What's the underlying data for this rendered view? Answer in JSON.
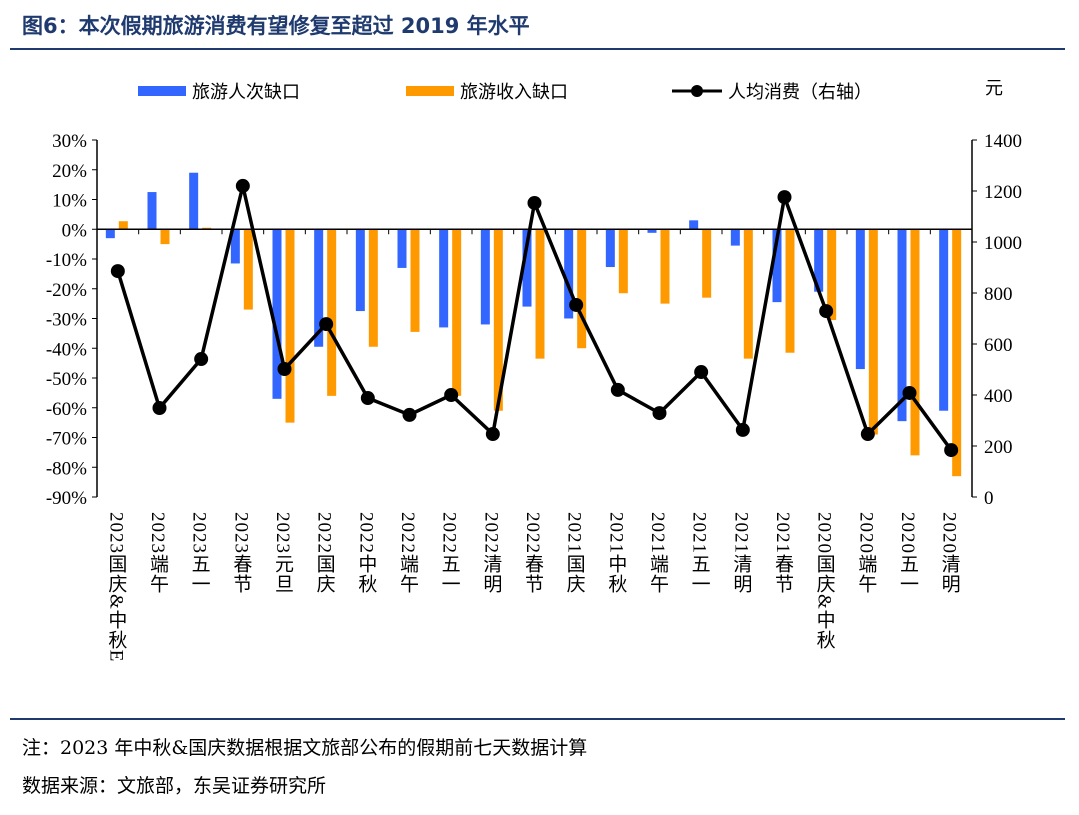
{
  "title": "图6：本次假期旅游消费有望修复至超过 2019 年水平",
  "note": "注：2023 年中秋&国庆数据根据文旅部公布的假期前七天数据计算",
  "source": "数据来源：文旅部，东吴证券研究所",
  "chart_data": {
    "type": "bar+line",
    "title": "本次假期旅游消费有望修复至超过 2019 年水平",
    "categories": [
      "2023国庆&中秋E",
      "2023端午",
      "2023五一",
      "2023春节",
      "2023元旦",
      "2022国庆",
      "2022中秋",
      "2022端午",
      "2022五一",
      "2022清明",
      "2022春节",
      "2021国庆",
      "2021中秋",
      "2021端午",
      "2021五一",
      "2021清明",
      "2021春节",
      "2020国庆&中秋",
      "2020端午",
      "2020五一",
      "2020清明"
    ],
    "series": [
      {
        "name": "旅游人次缺口",
        "type": "bar",
        "axis": "left",
        "color": "#3366ff",
        "values": [
          -3,
          12.5,
          19,
          -11.5,
          -57,
          -39.5,
          -27.5,
          -13,
          -33,
          -32,
          -26,
          -30,
          -12.7,
          -1.2,
          3,
          -5.5,
          -24.5,
          -21,
          -47,
          -64.5,
          -61
        ]
      },
      {
        "name": "旅游收入缺口",
        "type": "bar",
        "axis": "left",
        "color": "#ff9900",
        "values": [
          2.7,
          -5,
          0.5,
          -27,
          -65,
          -56,
          -39.5,
          -34.5,
          -56,
          -61,
          -43.5,
          -40,
          -21.5,
          -25,
          -23,
          -43.5,
          -41.5,
          -30.5,
          -69,
          -76,
          -83
        ]
      },
      {
        "name": "人均消费（右轴）",
        "type": "line",
        "axis": "right",
        "color": "#000000",
        "values": [
          886,
          349,
          541,
          1220,
          502,
          678,
          388,
          322,
          400,
          247,
          1153,
          753,
          420,
          329,
          490,
          263,
          1176,
          729,
          247,
          408,
          184
        ]
      }
    ],
    "left_axis": {
      "range": [
        -90,
        30
      ],
      "ticks": [
        "30%",
        "20%",
        "10%",
        "0%",
        "-10%",
        "-20%",
        "-30%",
        "-40%",
        "-50%",
        "-60%",
        "-70%",
        "-80%",
        "-90%"
      ]
    },
    "right_axis": {
      "label": "元",
      "range": [
        0,
        1400
      ],
      "ticks": [
        "1400",
        "1200",
        "1000",
        "800",
        "600",
        "400",
        "200",
        "0"
      ]
    },
    "legend": "top"
  }
}
